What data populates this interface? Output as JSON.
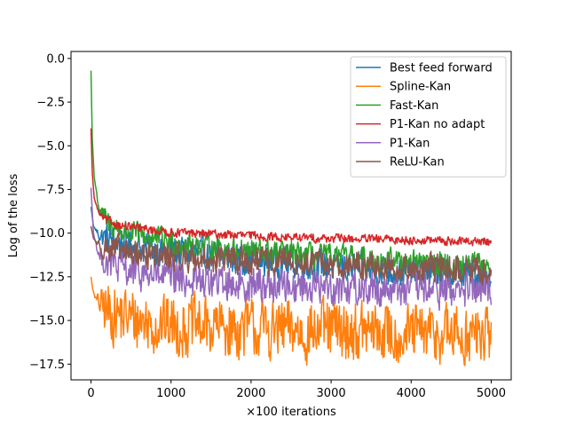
{
  "chart_data": {
    "type": "line",
    "title": "",
    "xlabel": "×100 iterations",
    "ylabel": "Log of the loss",
    "xlim": [
      -250,
      5250
    ],
    "ylim": [
      -18.4,
      0.4
    ],
    "xticks": [
      0,
      1000,
      2000,
      3000,
      4000,
      5000
    ],
    "xtick_labels": [
      "0",
      "1000",
      "2000",
      "3000",
      "4000",
      "5000"
    ],
    "yticks": [
      0.0,
      -2.5,
      -5.0,
      -7.5,
      -10.0,
      -12.5,
      -15.0,
      -17.5
    ],
    "ytick_labels": [
      "0.0",
      "−2.5",
      "−5.0",
      "−7.5",
      "−10.0",
      "−12.5",
      "−15.0",
      "−17.5"
    ],
    "grid": false,
    "legend_position": "top-right",
    "series": [
      {
        "name": "Best feed forward",
        "color": "#1f77b4",
        "points": [
          [
            0,
            -8.5
          ],
          [
            30,
            -9.6
          ],
          [
            100,
            -10.1
          ],
          [
            300,
            -10.5
          ],
          [
            600,
            -10.8
          ],
          [
            1000,
            -11.0
          ],
          [
            1500,
            -11.3
          ],
          [
            2000,
            -11.5
          ],
          [
            2500,
            -11.7
          ],
          [
            3000,
            -11.9
          ],
          [
            3500,
            -12.1
          ],
          [
            4000,
            -12.2
          ],
          [
            4500,
            -12.3
          ],
          [
            5000,
            -12.4
          ]
        ],
        "noise": 0.9
      },
      {
        "name": "Spline-Kan",
        "color": "#ff7f0e",
        "points": [
          [
            0,
            -12.5
          ],
          [
            20,
            -13.2
          ],
          [
            60,
            -13.8
          ],
          [
            200,
            -14.5
          ],
          [
            600,
            -15.0
          ],
          [
            1000,
            -15.3
          ],
          [
            1500,
            -15.4
          ],
          [
            2000,
            -15.5
          ],
          [
            2500,
            -15.6
          ],
          [
            3000,
            -15.6
          ],
          [
            3500,
            -15.7
          ],
          [
            4000,
            -15.8
          ],
          [
            4500,
            -15.8
          ],
          [
            5000,
            -15.9
          ]
        ],
        "noise": 1.7
      },
      {
        "name": "Fast-Kan",
        "color": "#2ca02c",
        "points": [
          [
            0,
            -0.7
          ],
          [
            15,
            -4.5
          ],
          [
            40,
            -6.8
          ],
          [
            100,
            -8.6
          ],
          [
            200,
            -9.4
          ],
          [
            400,
            -9.9
          ],
          [
            700,
            -10.2
          ],
          [
            1000,
            -10.5
          ],
          [
            1500,
            -10.8
          ],
          [
            2000,
            -11.0
          ],
          [
            2500,
            -11.2
          ],
          [
            3000,
            -11.4
          ],
          [
            3500,
            -11.5
          ],
          [
            4000,
            -11.6
          ],
          [
            4500,
            -11.8
          ],
          [
            5000,
            -11.9
          ]
        ],
        "noise": 0.7
      },
      {
        "name": "P1-Kan no adapt",
        "color": "#d62728",
        "points": [
          [
            0,
            -4.0
          ],
          [
            15,
            -6.5
          ],
          [
            40,
            -8.0
          ],
          [
            100,
            -8.9
          ],
          [
            200,
            -9.3
          ],
          [
            400,
            -9.6
          ],
          [
            700,
            -9.8
          ],
          [
            1000,
            -9.95
          ],
          [
            1500,
            -10.05
          ],
          [
            2000,
            -10.15
          ],
          [
            2500,
            -10.25
          ],
          [
            3000,
            -10.3
          ],
          [
            3500,
            -10.35
          ],
          [
            4000,
            -10.4
          ],
          [
            4500,
            -10.45
          ],
          [
            5000,
            -10.5
          ]
        ],
        "noise": 0.25
      },
      {
        "name": "P1-Kan",
        "color": "#9467bd",
        "points": [
          [
            0,
            -7.4
          ],
          [
            30,
            -10.0
          ],
          [
            100,
            -11.3
          ],
          [
            300,
            -11.9
          ],
          [
            600,
            -12.3
          ],
          [
            1000,
            -12.6
          ],
          [
            1500,
            -12.8
          ],
          [
            2000,
            -12.9
          ],
          [
            2500,
            -13.0
          ],
          [
            3000,
            -13.1
          ],
          [
            3500,
            -13.15
          ],
          [
            4000,
            -13.2
          ],
          [
            4500,
            -13.3
          ],
          [
            5000,
            -13.3
          ]
        ],
        "noise": 1.0
      },
      {
        "name": "ReLU-Kan",
        "color": "#8c564b",
        "points": [
          [
            0,
            -9.6
          ],
          [
            30,
            -10.3
          ],
          [
            100,
            -10.7
          ],
          [
            300,
            -11.0
          ],
          [
            600,
            -11.2
          ],
          [
            1000,
            -11.4
          ],
          [
            1500,
            -11.5
          ],
          [
            2000,
            -11.6
          ],
          [
            2500,
            -11.7
          ],
          [
            3000,
            -11.8
          ],
          [
            3500,
            -11.9
          ],
          [
            4000,
            -12.0
          ],
          [
            4500,
            -12.05
          ],
          [
            5000,
            -12.1
          ]
        ],
        "noise": 0.8
      }
    ]
  }
}
